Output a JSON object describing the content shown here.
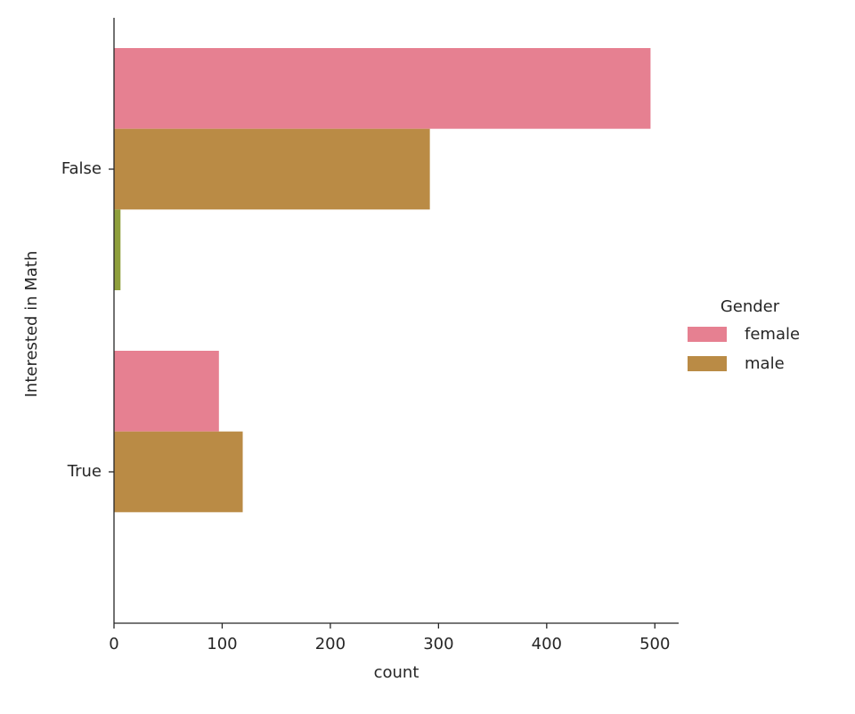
{
  "chart_data": {
    "type": "barh",
    "ylabel": "Interested in Math",
    "xlabel": "count",
    "categories": [
      "False",
      "True"
    ],
    "legend_title": "Gender",
    "series": [
      {
        "name": "female",
        "color": "#e68091",
        "values": [
          496,
          97
        ]
      },
      {
        "name": "male",
        "color": "#ba8b45",
        "values": [
          292,
          119
        ]
      },
      {
        "color": "#8e9f3c",
        "values": [
          6,
          null
        ]
      }
    ],
    "xlim": [
      0,
      522
    ],
    "xticks": [
      0,
      100,
      200,
      300,
      400,
      500
    ],
    "legend": "right",
    "grid": false
  }
}
